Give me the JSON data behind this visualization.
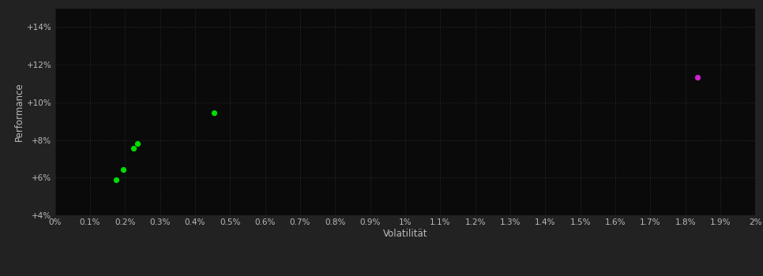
{
  "background_color": "#222222",
  "plot_bg_color": "#0a0a0a",
  "text_color": "#bbbbbb",
  "xlabel": "Volatilität",
  "ylabel": "Performance",
  "xlim": [
    0.0,
    0.02
  ],
  "ylim": [
    0.04,
    0.15
  ],
  "yticks": [
    0.04,
    0.06,
    0.08,
    0.1,
    0.12,
    0.14
  ],
  "xticks": [
    0.0,
    0.001,
    0.002,
    0.003,
    0.004,
    0.005,
    0.006,
    0.007,
    0.008,
    0.009,
    0.01,
    0.011,
    0.012,
    0.013,
    0.014,
    0.015,
    0.016,
    0.017,
    0.018,
    0.019,
    0.02
  ],
  "green_points": [
    [
      0.00195,
      0.0645
    ],
    [
      0.00175,
      0.059
    ],
    [
      0.00225,
      0.0755
    ],
    [
      0.00235,
      0.078
    ],
    [
      0.00455,
      0.0945
    ]
  ],
  "magenta_points": [
    [
      0.01835,
      0.1135
    ]
  ],
  "green_color": "#00dd00",
  "magenta_color": "#cc22cc",
  "point_size": 18
}
